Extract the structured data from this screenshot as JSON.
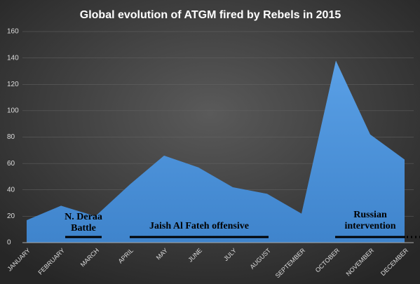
{
  "chart_data": {
    "type": "area",
    "title": "Global  evolution  of ATGM  fired  by Rebels  in 2015",
    "categories": [
      "JANUARY",
      "FEBRUARY",
      "MARCH",
      "APRIL",
      "MAY",
      "JUNE",
      "JULY",
      "AUGUST",
      "SEPTEMBER",
      "OCTOBER",
      "NOVEMBER",
      "DECEMBER"
    ],
    "values": [
      17,
      28,
      20,
      44,
      66,
      57,
      42,
      37,
      22,
      138,
      82,
      63
    ],
    "color": "#5b9bd5",
    "ylim": [
      0,
      160
    ],
    "yticks": [
      0,
      20,
      40,
      60,
      80,
      100,
      120,
      140,
      160
    ],
    "grid": true,
    "annotations": [
      {
        "lines": [
          "N. Deraa",
          "Battle"
        ]
      },
      {
        "lines": [
          "Jaish Al Fateh offensive"
        ]
      },
      {
        "lines": [
          "Russian",
          "intervention"
        ]
      }
    ]
  }
}
